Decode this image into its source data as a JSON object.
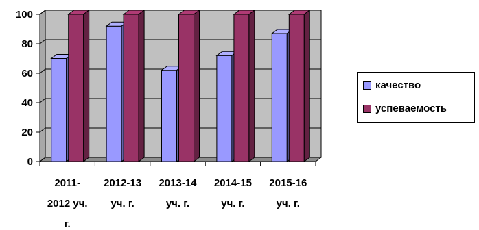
{
  "chart_data": {
    "type": "bar",
    "categories": [
      [
        "2011-",
        "2012 уч.",
        "г."
      ],
      [
        "2012-13",
        "уч. г."
      ],
      [
        "2013-14",
        "уч. г."
      ],
      [
        "2014-15",
        "уч. г."
      ],
      [
        "2015-16",
        "уч. г."
      ]
    ],
    "series": [
      {
        "name": "качество",
        "values": [
          70,
          92,
          62,
          72,
          87
        ],
        "color": "#9999ff"
      },
      {
        "name": "успеваемость",
        "values": [
          100,
          100,
          100,
          100,
          100
        ],
        "color": "#993366"
      }
    ],
    "ylim": [
      0,
      100
    ],
    "yticks": [
      0,
      20,
      40,
      60,
      80,
      100
    ],
    "grid": true,
    "legend": "right",
    "plot_background": "#c0c0c0"
  }
}
